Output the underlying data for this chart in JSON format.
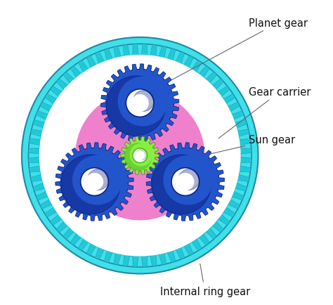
{
  "bg_color": "#ffffff",
  "ring_outer_r": 0.89,
  "ring_body_r": 0.84,
  "ring_tooth_inner_r": 0.76,
  "ring_color": "#40e0e8",
  "ring_color_mid": "#20c8d8",
  "ring_border_color": "#2288aa",
  "ring_n_teeth": 72,
  "carrier_color": "#ee80cc",
  "carrier_r": 0.6,
  "sun_r": 0.115,
  "sun_tooth_r": 0.145,
  "sun_n_teeth": 18,
  "sun_color": "#88ee44",
  "sun_color_dark": "#55bb22",
  "sun_border": "#448811",
  "sun_hole_r": 0.055,
  "planet_r": 0.255,
  "planet_tooth_r": 0.295,
  "planet_n_teeth": 30,
  "planet_color": "#2255cc",
  "planet_color_mid": "#1a44bb",
  "planet_color_dark": "#0d2288",
  "planet_border": "#081a66",
  "planet_hole_r": 0.105,
  "planet_orbit_r": 0.395,
  "planet_angles_deg": [
    90,
    210,
    330
  ],
  "label_planet": "Planet gear",
  "label_carrier": "Gear carrier",
  "label_sun": "Sun gear",
  "label_ring": "Internal ring gear",
  "label_fontsize": 10.5,
  "label_color": "#111111",
  "arrow_color": "#666666"
}
